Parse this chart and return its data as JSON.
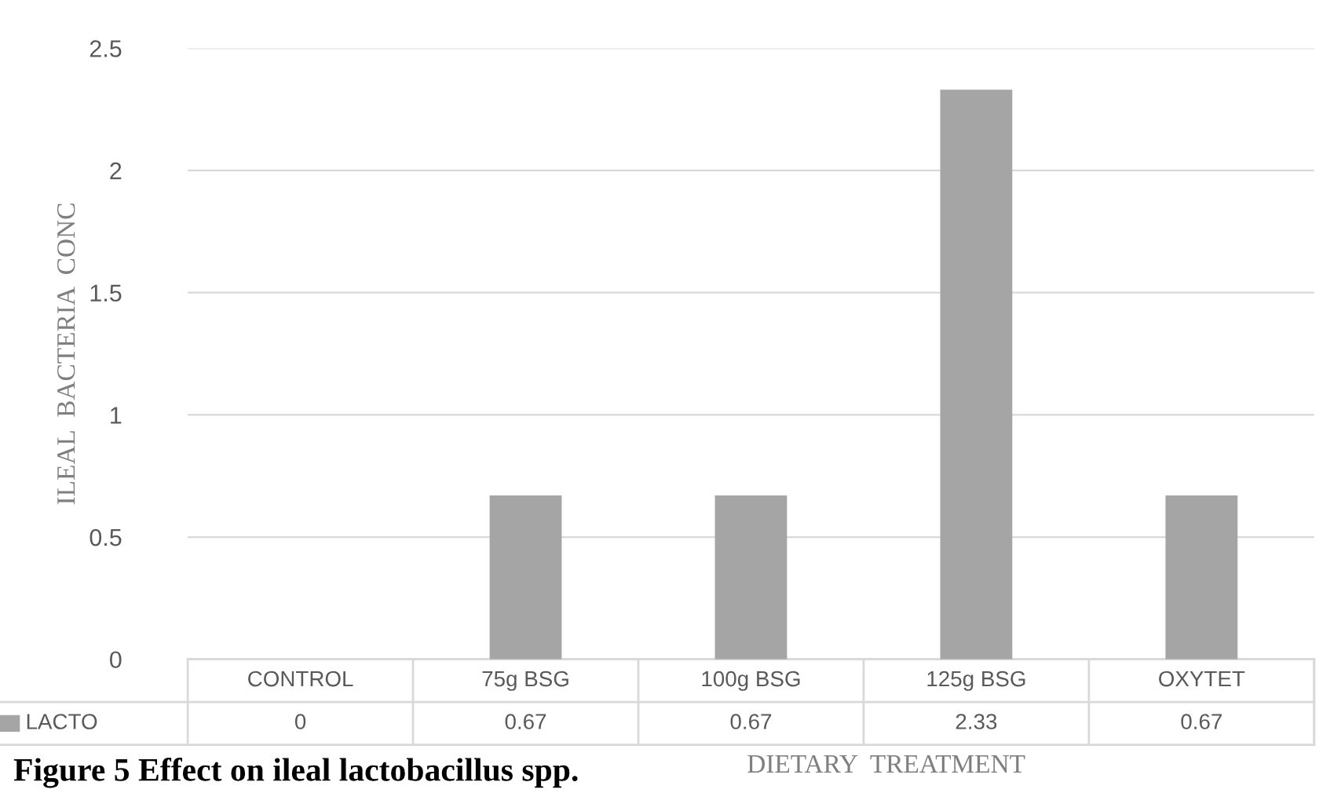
{
  "chart_data": {
    "type": "bar",
    "title": "Figure 5 Effect on ileal lactobacillus spp.",
    "xlabel": "DIETARY  TREATMENT",
    "ylabel": "ILEAL  BACTERIA  CONC",
    "categories": [
      "CONTROL",
      "75g BSG",
      "100g BSG",
      "125g BSG",
      "OXYTET"
    ],
    "series": [
      {
        "name": "LACTO",
        "color": "#a5a5a5",
        "values": [
          0,
          0.67,
          0.67,
          2.33,
          0.67
        ]
      }
    ],
    "ylim": [
      0,
      2.5
    ],
    "yticks": [
      0,
      0.5,
      1,
      1.5,
      2,
      2.5
    ],
    "grid": "y",
    "data_labels": true
  }
}
